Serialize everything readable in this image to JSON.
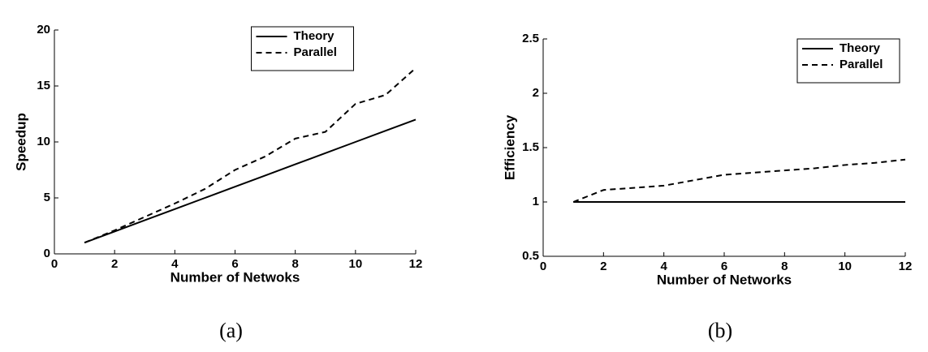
{
  "chart_data": [
    {
      "type": "line",
      "caption": "(a)",
      "xlabel": "Number of Netwoks",
      "ylabel": "Speedup",
      "x": [
        1,
        2,
        3,
        4,
        5,
        6,
        7,
        8,
        9,
        10,
        11,
        12
      ],
      "series": [
        {
          "name": "Theory",
          "color": "#000000",
          "linestyle": "solid",
          "values": [
            1,
            2,
            3,
            4,
            5,
            6,
            7,
            8,
            9,
            10,
            11,
            12
          ]
        },
        {
          "name": "Parallel",
          "color": "#000000",
          "linestyle": "dashed",
          "values": [
            1,
            2.1,
            3.3,
            4.5,
            5.8,
            7.5,
            8.7,
            10.3,
            10.9,
            13.4,
            14.2,
            16.6
          ]
        }
      ],
      "xlim": [
        0,
        12
      ],
      "xticks": [
        0,
        2,
        4,
        6,
        8,
        10,
        12
      ],
      "ylim": [
        0,
        20
      ],
      "yticks": [
        0,
        5,
        10,
        15,
        20
      ],
      "legend": "upper center"
    },
    {
      "type": "line",
      "caption": "(b)",
      "xlabel": "Number of Networks",
      "ylabel": "Efficiency",
      "x": [
        1,
        2,
        3,
        4,
        5,
        6,
        7,
        8,
        9,
        10,
        11,
        12
      ],
      "series": [
        {
          "name": "Theory",
          "color": "#000000",
          "linestyle": "solid",
          "values": [
            1,
            1,
            1,
            1,
            1,
            1,
            1,
            1,
            1,
            1,
            1,
            1
          ]
        },
        {
          "name": "Parallel",
          "color": "#000000",
          "linestyle": "dashed",
          "values": [
            1,
            1.11,
            1.13,
            1.15,
            1.2,
            1.25,
            1.27,
            1.29,
            1.31,
            1.34,
            1.36,
            1.39
          ]
        }
      ],
      "xlim": [
        0,
        12
      ],
      "xticks": [
        0,
        2,
        4,
        6,
        8,
        10,
        12
      ],
      "ylim": [
        0.5,
        2.5
      ],
      "yticks": [
        0.5,
        1,
        1.5,
        2,
        2.5
      ],
      "legend": "upper right"
    }
  ]
}
